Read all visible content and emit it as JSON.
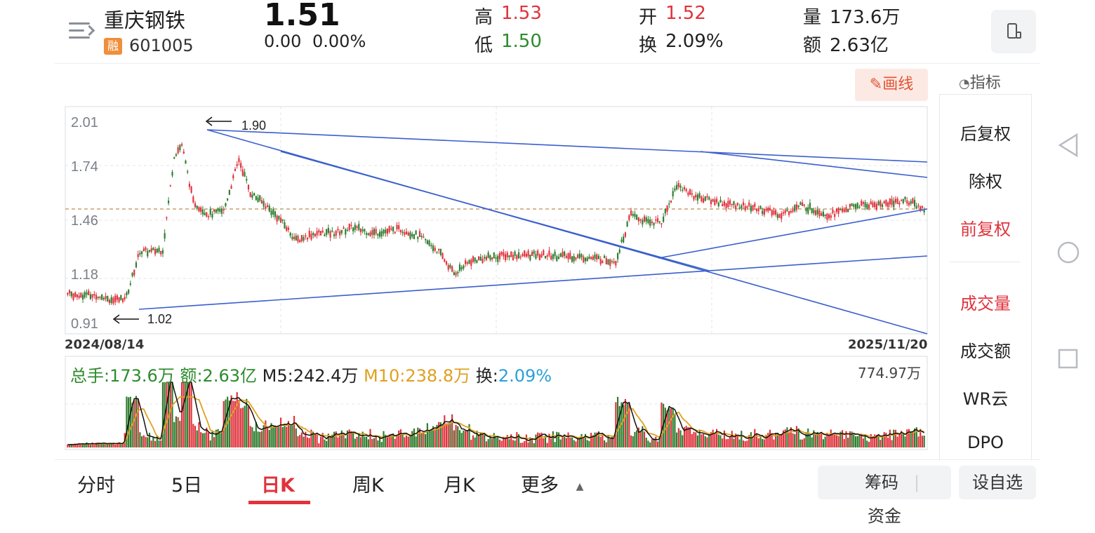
{
  "header": {
    "name": "重庆钢铁",
    "badge": "融",
    "code": "601005",
    "price": "1.51",
    "change": "0.00",
    "change_pct": "0.00%",
    "high_label": "高",
    "high": "1.53",
    "low_label": "低",
    "low": "1.50",
    "open_label": "开",
    "open": "1.52",
    "turnover_label": "换",
    "turnover": "2.09%",
    "volume_label": "量",
    "volume": "173.6万",
    "amount_label": "额",
    "amount": "2.63亿"
  },
  "toolbar": {
    "draw_label": "画线",
    "indicator_label": "指标"
  },
  "right_menu": {
    "items": [
      "后复权",
      "除权",
      "前复权",
      "成交量",
      "成交额",
      "WR云",
      "DPO"
    ],
    "active": [
      "前复权",
      "成交量"
    ]
  },
  "chart": {
    "y_ticks": [
      "2.01",
      "1.74",
      "1.46",
      "1.18",
      "0.91"
    ],
    "start_date": "2024/08/14",
    "end_date": "2025/11/20",
    "high_annotation": "1.90",
    "low_annotation": "1.02"
  },
  "volume": {
    "total_label": "总手:",
    "total": "173.6万",
    "amount_label": "额:",
    "amount": "2.63亿",
    "m5_label": "M5:",
    "m5": "242.4万",
    "m10_label": "M10:",
    "m10": "238.8万",
    "turn_label": "换:",
    "turn": "2.09%",
    "max": "774.97万"
  },
  "chart_data": {
    "type": "candlestick",
    "y_range": [
      0.91,
      2.01
    ],
    "y_axis_ticks": [
      2.01,
      1.74,
      1.46,
      1.18,
      0.91
    ],
    "x_start": "2024/08/14",
    "x_end": "2025/11/20",
    "current_price_line": 1.51,
    "annotated_high": 1.9,
    "annotated_low": 1.02,
    "volume_max": "774.97万",
    "colors": {
      "up": "#e0333c",
      "down": "#2e7d2e",
      "trend": "#3a5fcd",
      "ma5": "#111111",
      "ma10": "#e0a020"
    }
  },
  "bottom_tabs": [
    "分时",
    "5日",
    "日K",
    "周K",
    "月K",
    "更多"
  ],
  "active_tab": "日K",
  "bottom_buttons": {
    "chips": "筹码",
    "funds": "资金",
    "watch": "设自选"
  }
}
